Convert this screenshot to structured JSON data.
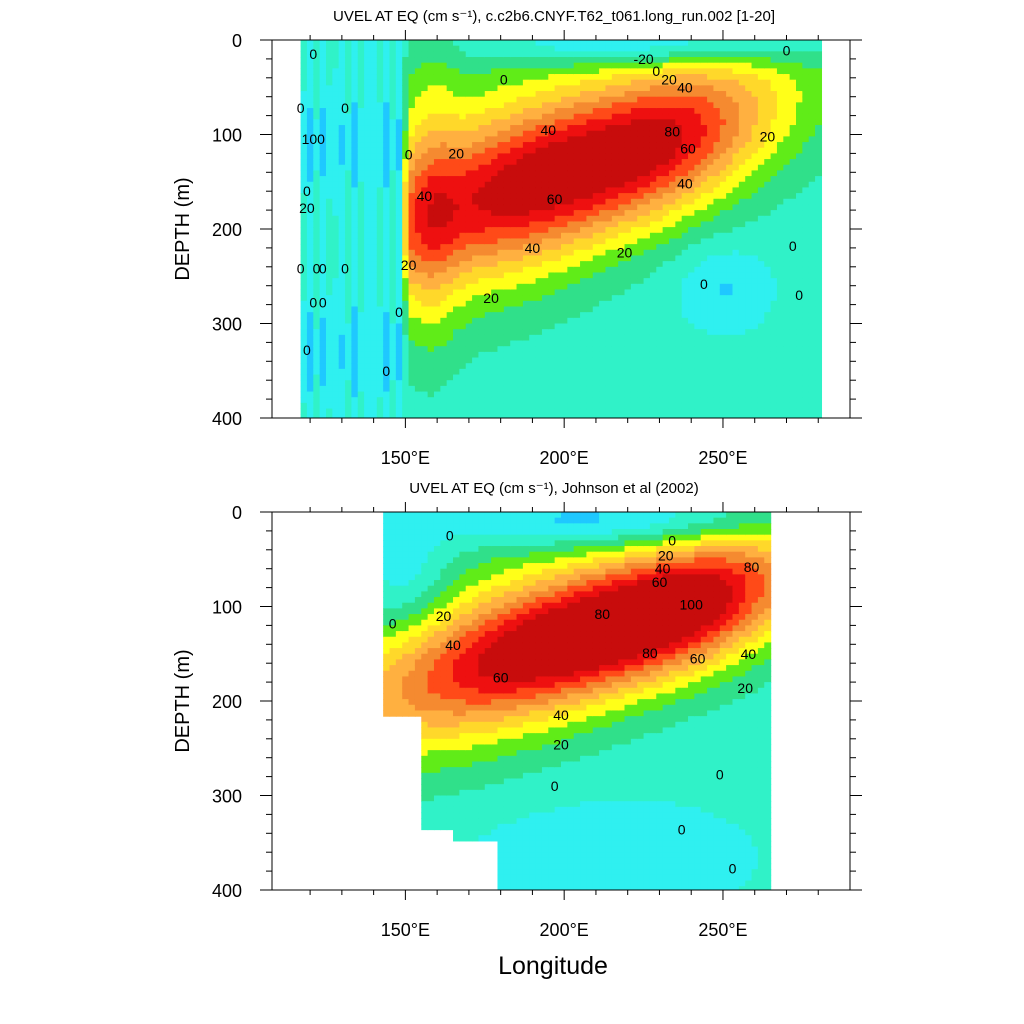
{
  "colors": {
    "levels": [
      "#1fc8ff",
      "#2ff0f0",
      "#30f2c8",
      "#30e08a",
      "#60ec18",
      "#ffff18",
      "#ffd82a",
      "#ffb040",
      "#f58a30",
      "#ff4a18",
      "#ee1010",
      "#c80c0c"
    ],
    "level_bounds": [
      -20,
      -10,
      0,
      10,
      20,
      30,
      40,
      50,
      60,
      70,
      80,
      90,
      100
    ]
  },
  "chart_data": [
    {
      "type": "contour",
      "title": "UVEL AT EQ (cm s⁻¹), c.c2b6.CNYF.T62_t061.long_run.002 [1-20]",
      "xlabel": "",
      "ylabel": "DEPTH (m)",
      "xlim": [
        108,
        290
      ],
      "ylim": [
        400,
        0
      ],
      "xticks": [
        150,
        200,
        250
      ],
      "xtick_labels": [
        "150°E",
        "200°E",
        "250°E"
      ],
      "yticks": [
        0,
        100,
        200,
        300,
        400
      ],
      "ytick_labels": [
        "0",
        "100",
        "200",
        "300",
        "400"
      ],
      "data_extent": {
        "lon": [
          117,
          280
        ],
        "depth": [
          0,
          400
        ]
      },
      "core": {
        "lon": 225,
        "depth": 115,
        "max": 85
      },
      "contour_labels": [
        {
          "text": "-20",
          "lon": 225,
          "depth": 20
        },
        {
          "text": "0",
          "lon": 229,
          "depth": 33
        },
        {
          "text": "20",
          "lon": 233,
          "depth": 42
        },
        {
          "text": "40",
          "lon": 238,
          "depth": 50
        },
        {
          "text": "0",
          "lon": 181,
          "depth": 42
        },
        {
          "text": "40",
          "lon": 195,
          "depth": 95
        },
        {
          "text": "80",
          "lon": 234,
          "depth": 97
        },
        {
          "text": "60",
          "lon": 239,
          "depth": 115
        },
        {
          "text": "20",
          "lon": 264,
          "depth": 102
        },
        {
          "text": "20",
          "lon": 166,
          "depth": 120
        },
        {
          "text": "0",
          "lon": 151,
          "depth": 121
        },
        {
          "text": "40",
          "lon": 156,
          "depth": 165
        },
        {
          "text": "60",
          "lon": 197,
          "depth": 168
        },
        {
          "text": "40",
          "lon": 238,
          "depth": 152
        },
        {
          "text": "40",
          "lon": 190,
          "depth": 220
        },
        {
          "text": "20",
          "lon": 219,
          "depth": 225
        },
        {
          "text": "20",
          "lon": 151,
          "depth": 238
        },
        {
          "text": "20",
          "lon": 177,
          "depth": 273
        },
        {
          "text": "0",
          "lon": 244,
          "depth": 258
        },
        {
          "text": "0",
          "lon": 148,
          "depth": 288
        },
        {
          "text": "0",
          "lon": 144,
          "depth": 350
        },
        {
          "text": "0",
          "lon": 272,
          "depth": 218
        },
        {
          "text": "0",
          "lon": 274,
          "depth": 270
        },
        {
          "text": "0",
          "lon": 270,
          "depth": 11
        },
        {
          "text": "0",
          "lon": 121,
          "depth": 15
        },
        {
          "text": "0",
          "lon": 117,
          "depth": 72
        },
        {
          "text": "0",
          "lon": 131,
          "depth": 72
        },
        {
          "text": "100",
          "lon": 121,
          "depth": 105
        },
        {
          "text": "0",
          "lon": 119,
          "depth": 160
        },
        {
          "text": "20",
          "lon": 119,
          "depth": 178
        },
        {
          "text": "0",
          "lon": 117,
          "depth": 242
        },
        {
          "text": "0",
          "lon": 122,
          "depth": 242
        },
        {
          "text": "0",
          "lon": 124,
          "depth": 242
        },
        {
          "text": "0",
          "lon": 131,
          "depth": 242
        },
        {
          "text": "0",
          "lon": 121,
          "depth": 278
        },
        {
          "text": "0",
          "lon": 124,
          "depth": 278
        },
        {
          "text": "0",
          "lon": 119,
          "depth": 328
        }
      ]
    },
    {
      "type": "contour",
      "title": "UVEL AT EQ (cm s⁻¹), Johnson et al (2002)",
      "xlabel": "Longitude",
      "ylabel": "DEPTH (m)",
      "xlim": [
        108,
        290
      ],
      "ylim": [
        400,
        0
      ],
      "xticks": [
        150,
        200,
        250
      ],
      "xtick_labels": [
        "150°E",
        "200°E",
        "250°E"
      ],
      "yticks": [
        0,
        100,
        200,
        300,
        400
      ],
      "ytick_labels": [
        "0",
        "100",
        "200",
        "300",
        "400"
      ],
      "data_extent": {
        "lon": [
          143,
          265
        ],
        "depth": [
          0,
          400
        ]
      },
      "core": {
        "lon": 230,
        "depth": 108,
        "max": 105
      },
      "contour_labels": [
        {
          "text": "0",
          "lon": 164,
          "depth": 25
        },
        {
          "text": "0",
          "lon": 234,
          "depth": 30
        },
        {
          "text": "20",
          "lon": 232,
          "depth": 46
        },
        {
          "text": "40",
          "lon": 231,
          "depth": 60
        },
        {
          "text": "60",
          "lon": 230,
          "depth": 74
        },
        {
          "text": "80",
          "lon": 259,
          "depth": 58
        },
        {
          "text": "0",
          "lon": 146,
          "depth": 118
        },
        {
          "text": "20",
          "lon": 162,
          "depth": 110
        },
        {
          "text": "80",
          "lon": 212,
          "depth": 108
        },
        {
          "text": "100",
          "lon": 240,
          "depth": 98
        },
        {
          "text": "40",
          "lon": 165,
          "depth": 141
        },
        {
          "text": "80",
          "lon": 227,
          "depth": 149
        },
        {
          "text": "60",
          "lon": 242,
          "depth": 155
        },
        {
          "text": "40",
          "lon": 258,
          "depth": 150
        },
        {
          "text": "60",
          "lon": 180,
          "depth": 175
        },
        {
          "text": "20",
          "lon": 257,
          "depth": 186
        },
        {
          "text": "40",
          "lon": 199,
          "depth": 215
        },
        {
          "text": "20",
          "lon": 199,
          "depth": 246
        },
        {
          "text": "0",
          "lon": 249,
          "depth": 278
        },
        {
          "text": "0",
          "lon": 197,
          "depth": 290
        },
        {
          "text": "0",
          "lon": 237,
          "depth": 336
        },
        {
          "text": "0",
          "lon": 253,
          "depth": 377
        }
      ]
    }
  ]
}
